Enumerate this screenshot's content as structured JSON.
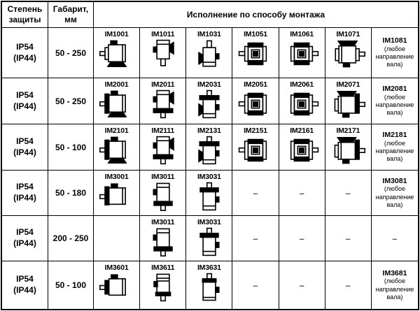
{
  "header": {
    "protection": "Степень защиты",
    "size": "Габарит, мм",
    "mounting": "Исполнение по способу монтажа"
  },
  "rows": [
    {
      "protection": [
        "IP54",
        "(IP44)"
      ],
      "size": "50 - 250",
      "cells": [
        {
          "kind": "icon",
          "label": "IM1001",
          "icon": "motor-foot-shaft-left-icon"
        },
        {
          "kind": "icon",
          "label": "IM1011",
          "icon": "motor-foot-shaft-down-icon"
        },
        {
          "kind": "icon",
          "label": "IM1031",
          "icon": "motor-foot-shaft-up-icon"
        },
        {
          "kind": "icon",
          "label": "IM1051",
          "icon": "motor-end-shaft-left-icon"
        },
        {
          "kind": "icon",
          "label": "IM1061",
          "icon": "motor-end-shaft-right-icon"
        },
        {
          "kind": "icon",
          "label": "IM1071",
          "icon": "motor-foot-top-shaft-right-icon"
        },
        {
          "kind": "note",
          "label": "IM1081",
          "note": "(любое направление вала)"
        }
      ]
    },
    {
      "protection": [
        "IP54",
        "(IP44)"
      ],
      "size": "50 - 250",
      "cells": [
        {
          "kind": "icon",
          "label": "IM2001",
          "icon": "motor-flange-foot-shaft-left-icon"
        },
        {
          "kind": "icon",
          "label": "IM2011",
          "icon": "motor-flange-foot-shaft-down-icon"
        },
        {
          "kind": "icon",
          "label": "IM2031",
          "icon": "motor-flange-foot-shaft-up-icon"
        },
        {
          "kind": "icon",
          "label": "IM2051",
          "icon": "motor-flange-end-shaft-left-icon"
        },
        {
          "kind": "icon",
          "label": "IM2061",
          "icon": "motor-flange-end-shaft-right-icon"
        },
        {
          "kind": "icon",
          "label": "IM2071",
          "icon": "motor-flange-foot-top-shaft-right-icon"
        },
        {
          "kind": "note",
          "label": "IM2081",
          "note": "(любое направление вала)"
        }
      ]
    },
    {
      "protection": [
        "IP54",
        "(IP44)"
      ],
      "size": "50 - 100",
      "cells": [
        {
          "kind": "icon",
          "label": "IM2101",
          "icon": "motor-flange-foot-shaft-left-icon"
        },
        {
          "kind": "icon",
          "label": "IM2111",
          "icon": "motor-flange-foot-shaft-down-icon"
        },
        {
          "kind": "icon",
          "label": "IM2131",
          "icon": "motor-flange-foot-shaft-up-icon"
        },
        {
          "kind": "icon",
          "label": "IM2151",
          "icon": "motor-flange-end-shaft-left-icon"
        },
        {
          "kind": "icon",
          "label": "IM2161",
          "icon": "motor-flange-end-shaft-right-icon"
        },
        {
          "kind": "icon",
          "label": "IM2171",
          "icon": "motor-flange-foot-top-shaft-right-icon"
        },
        {
          "kind": "note",
          "label": "IM2181",
          "note": "(любое направление вала)"
        }
      ]
    },
    {
      "protection": [
        "IP54",
        "(IP44)"
      ],
      "size": "50 - 180",
      "cells": [
        {
          "kind": "icon",
          "label": "IM3001",
          "icon": "motor-flange-shaft-left-icon"
        },
        {
          "kind": "icon",
          "label": "IM3011",
          "icon": "motor-flange-shaft-down-icon"
        },
        {
          "kind": "icon",
          "label": "IM3031",
          "icon": "motor-flange-shaft-up-icon"
        },
        {
          "kind": "dash",
          "label": "–"
        },
        {
          "kind": "dash",
          "label": "–"
        },
        {
          "kind": "dash",
          "label": "–"
        },
        {
          "kind": "note",
          "label": "IM3081",
          "note": "(любое направление вала)"
        }
      ]
    },
    {
      "protection": [
        "IP54",
        "(IP44)"
      ],
      "size": "200 - 250",
      "cells": [
        {
          "kind": "empty"
        },
        {
          "kind": "icon",
          "label": "IM3011",
          "icon": "motor-flange-shaft-down-icon"
        },
        {
          "kind": "icon",
          "label": "IM3031",
          "icon": "motor-flange-shaft-up-icon"
        },
        {
          "kind": "dash",
          "label": "–"
        },
        {
          "kind": "dash",
          "label": "–"
        },
        {
          "kind": "dash",
          "label": "–"
        },
        {
          "kind": "dash",
          "label": "–"
        }
      ]
    },
    {
      "protection": [
        "IP54",
        "(IP44)"
      ],
      "size": "50 - 100",
      "cells": [
        {
          "kind": "icon",
          "label": "IM3601",
          "icon": "motor-face-shaft-left-icon"
        },
        {
          "kind": "icon",
          "label": "IM3611",
          "icon": "motor-face-shaft-down-icon"
        },
        {
          "kind": "icon",
          "label": "IM3631",
          "icon": "motor-face-shaft-up-icon"
        },
        {
          "kind": "dash",
          "label": "–"
        },
        {
          "kind": "dash",
          "label": "–"
        },
        {
          "kind": "dash",
          "label": "–"
        },
        {
          "kind": "note",
          "label": "IM3681",
          "note": "(любое направление вала)"
        }
      ]
    }
  ]
}
